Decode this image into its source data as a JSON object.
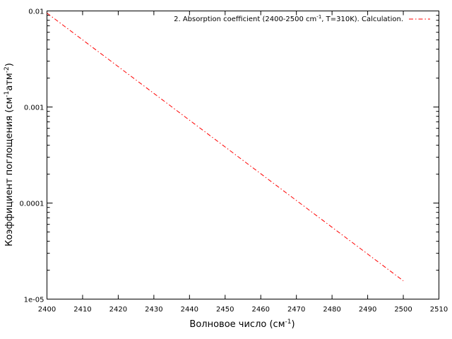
{
  "chart_data": {
    "type": "line",
    "xlabel": "Волновое число (см",
    "xlabel_sup": "-1",
    "xlabel_end": ")",
    "ylabel_main": "Коэффициент поглощения (см",
    "ylabel_sup1": "-1",
    "ylabel_mid": "атм",
    "ylabel_sup2": "-2",
    "ylabel_end": ")",
    "xlim": [
      2400,
      2510
    ],
    "ylim": [
      1e-05,
      0.01
    ],
    "y_scale": "log",
    "x_ticks": [
      "2400",
      "2410",
      "2420",
      "2430",
      "2440",
      "2450",
      "2460",
      "2470",
      "2480",
      "2490",
      "2500",
      "2510"
    ],
    "y_ticks": [
      {
        "value": 0.01,
        "label": "0.01"
      },
      {
        "value": 0.001,
        "label": "0.001"
      },
      {
        "value": 0.0001,
        "label": "0.0001"
      },
      {
        "value": 1e-05,
        "label": "1e-05"
      }
    ],
    "grid": false,
    "legend_position": "top-right",
    "series": [
      {
        "name_main": "2. Absorption coefficient (2400-2500 cm",
        "name_sup": "-1",
        "name_end": ", T=310K). Calculation.",
        "color": "#ff0000",
        "style": "dash-dot",
        "x": [
          2400,
          2500
        ],
        "y": [
          0.0095,
          1.55e-05
        ]
      }
    ]
  }
}
